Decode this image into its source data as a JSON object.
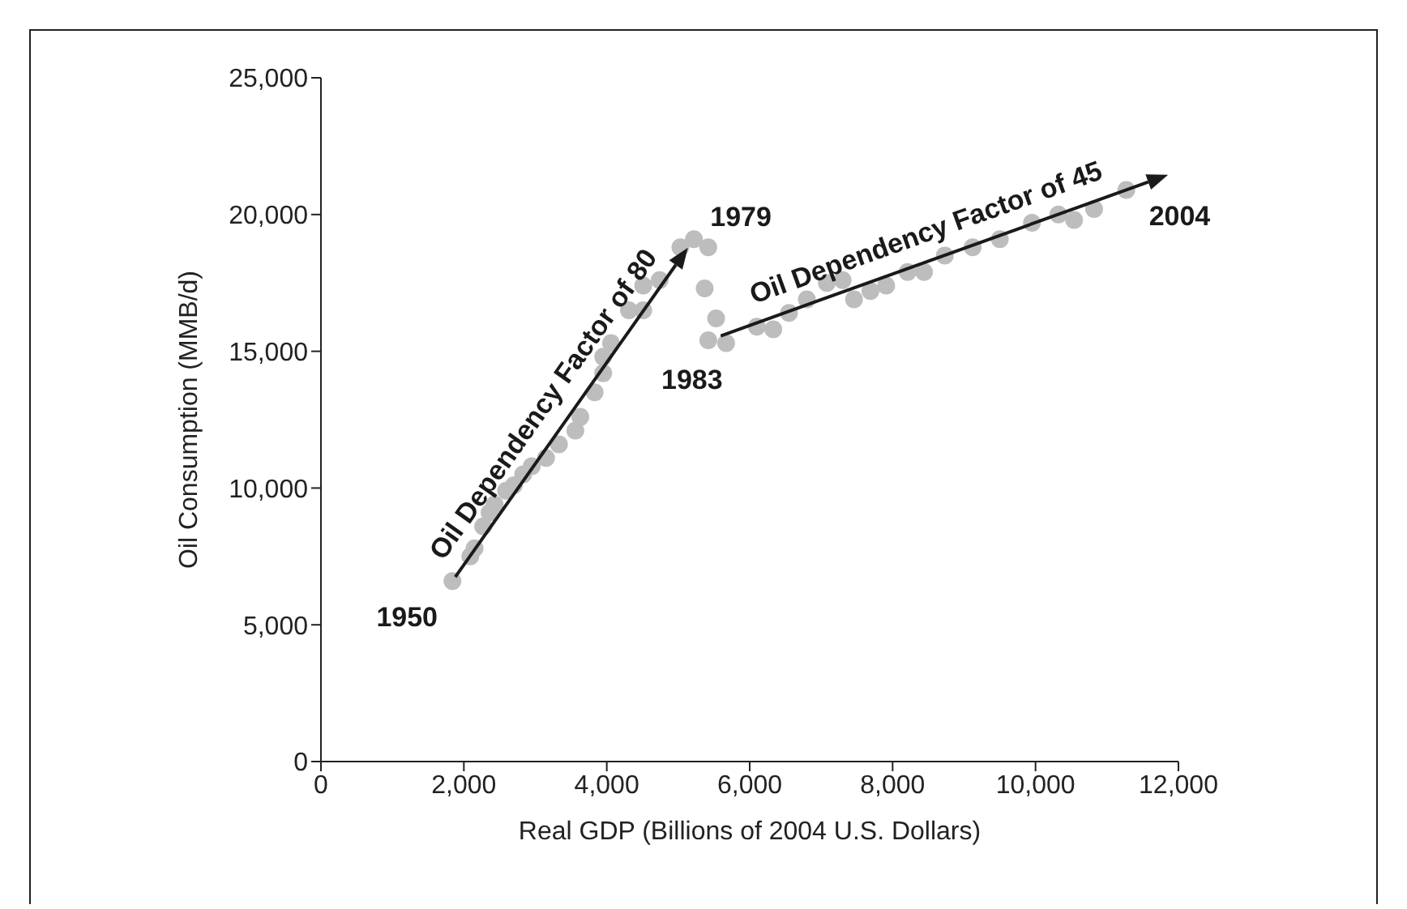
{
  "chart_data": {
    "type": "scatter",
    "xlabel": "Real GDP (Billions of 2004 U.S. Dollars)",
    "ylabel": "Oil Consumption (MMB/d)",
    "xlim": [
      0,
      12000
    ],
    "xticks": [
      0,
      {
        "value": 2000,
        "label": "2,000"
      },
      {
        "value": 4000,
        "label": "4,000"
      },
      {
        "value": 6000,
        "label": "6,000"
      },
      {
        "value": 8000,
        "label": "8,000"
      },
      {
        "value": 10000,
        "label": "10,000"
      },
      {
        "value": 12000,
        "label": "12,000"
      }
    ],
    "ylim": [
      0,
      25000
    ],
    "yticks": [
      0,
      {
        "value": 5000,
        "label": "5,000"
      },
      {
        "value": 10000,
        "label": "10,000"
      },
      {
        "value": 15000,
        "label": "15,000"
      },
      {
        "value": 20000,
        "label": "20,000"
      },
      {
        "value": 25000,
        "label": "25,000"
      }
    ],
    "grid": false,
    "legend": false,
    "marker": "circle",
    "series": [
      {
        "type": "scatter",
        "color": "#bdbdbd",
        "x": [
          1840,
          2090,
          2150,
          2270,
          2360,
          2430,
          2590,
          2700,
          2830,
          2950,
          3150,
          3330,
          3560,
          3630,
          3830,
          3950,
          3950,
          4060,
          4310,
          4510,
          4510,
          4740,
          5030,
          5220,
          5420,
          5370,
          5530,
          5420,
          5670,
          6100,
          6330,
          6550,
          6800,
          7080,
          7300,
          7460,
          7690,
          7910,
          8210,
          8440,
          8730,
          9120,
          9500,
          9950,
          10320,
          10540,
          10820,
          11270
        ],
        "values": [
          6600,
          7500,
          7800,
          8600,
          9100,
          9400,
          9900,
          10100,
          10500,
          10800,
          11100,
          11600,
          12100,
          12600,
          13500,
          14200,
          14800,
          15300,
          16500,
          16500,
          17400,
          17600,
          18800,
          19100,
          18800,
          17300,
          16200,
          15400,
          15300,
          15900,
          15800,
          16400,
          16900,
          17500,
          17600,
          16900,
          17200,
          17400,
          17900,
          17900,
          18500,
          18800,
          19100,
          19700,
          20000,
          19800,
          20200,
          20900
        ]
      }
    ],
    "annotations": [
      {
        "text": "1950",
        "x": 1840,
        "y": 6600
      },
      {
        "text": "1979",
        "x": 5220,
        "y": 19100
      },
      {
        "text": "1983",
        "x": 5420,
        "y": 15400
      },
      {
        "text": "2004",
        "x": 11270,
        "y": 20900
      },
      "Oil Dependency Factor of 80",
      "Oil Dependency Factor of 45"
    ]
  }
}
